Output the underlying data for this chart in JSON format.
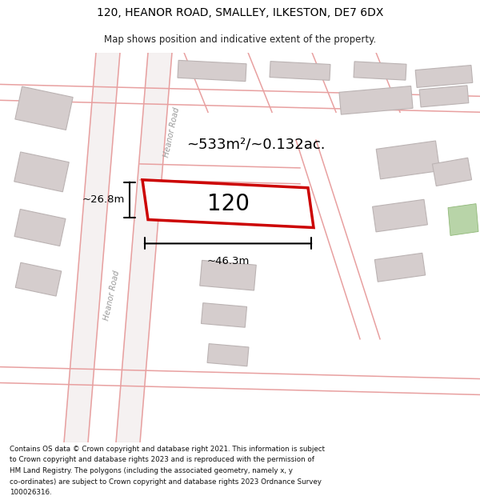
{
  "title": "120, HEANOR ROAD, SMALLEY, ILKESTON, DE7 6DX",
  "subtitle": "Map shows position and indicative extent of the property.",
  "footer": "Contains OS data © Crown copyright and database right 2021. This information is subject to Crown copyright and database rights 2023 and is reproduced with the permission of HM Land Registry. The polygons (including the associated geometry, namely x, y co-ordinates) are subject to Crown copyright and database rights 2023 Ordnance Survey 100026316.",
  "bg_color": "#f9f2f2",
  "road_color": "#e8a0a0",
  "building_color": "#d5cdcd",
  "building_edge": "#bbb3b3",
  "highlight_color": "#cc0000",
  "area_text": "~533m²/~0.132ac.",
  "label_120": "120",
  "dim_width": "~46.3m",
  "dim_height": "~26.8m",
  "road_label_upper": "Heanor Road",
  "road_label_lower": "Heanor Road",
  "green_color": "#b8d4a8",
  "green_edge": "#90b878"
}
